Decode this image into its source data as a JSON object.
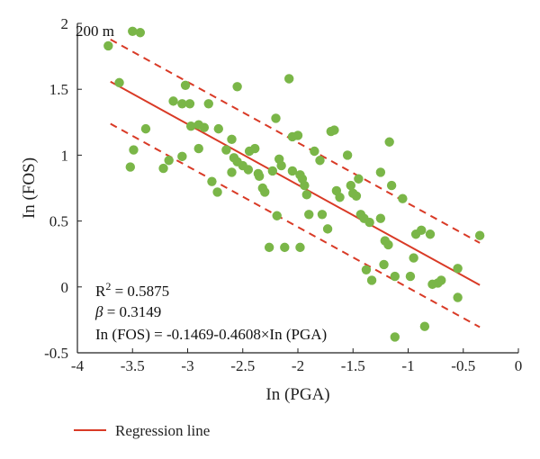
{
  "chart_data": {
    "type": "scatter",
    "title": "",
    "xlabel": "In (PGA)",
    "ylabel": "In (FOS)",
    "xlim": [
      -4,
      0
    ],
    "ylim": [
      -0.5,
      2
    ],
    "x_ticks": [
      "-4",
      "-3.5",
      "-3",
      "-2.5",
      "-2",
      "-1.5",
      "-1",
      "-0.5",
      "0"
    ],
    "y_ticks": [
      "-0.5",
      "0",
      "0.5",
      "1",
      "1.5",
      "2"
    ],
    "grid": false,
    "point_color": "#7ab648",
    "line_color": "#d93a26",
    "series": [
      {
        "name": "",
        "points": [
          [
            -3.72,
            1.83
          ],
          [
            -3.5,
            1.94
          ],
          [
            -3.43,
            1.93
          ],
          [
            -3.62,
            1.55
          ],
          [
            -3.38,
            1.2
          ],
          [
            -3.52,
            0.91
          ],
          [
            -3.49,
            1.04
          ],
          [
            -3.22,
            0.9
          ],
          [
            -3.17,
            0.96
          ],
          [
            -3.13,
            1.41
          ],
          [
            -3.05,
            1.39
          ],
          [
            -3.02,
            1.53
          ],
          [
            -2.98,
            1.39
          ],
          [
            -2.97,
            1.22
          ],
          [
            -2.9,
            1.23
          ],
          [
            -2.85,
            1.21
          ],
          [
            -2.81,
            1.39
          ],
          [
            -3.05,
            0.99
          ],
          [
            -2.78,
            0.8
          ],
          [
            -2.73,
            0.72
          ],
          [
            -2.65,
            1.04
          ],
          [
            -2.55,
            1.52
          ],
          [
            -2.72,
            1.2
          ],
          [
            -2.6,
            1.12
          ],
          [
            -2.58,
            0.98
          ],
          [
            -2.55,
            0.95
          ],
          [
            -2.5,
            0.92
          ],
          [
            -2.45,
            0.89
          ],
          [
            -2.44,
            1.03
          ],
          [
            -2.39,
            1.05
          ],
          [
            -2.36,
            0.86
          ],
          [
            -2.32,
            0.75
          ],
          [
            -2.3,
            0.72
          ],
          [
            -2.26,
            0.3
          ],
          [
            -2.23,
            0.88
          ],
          [
            -2.2,
            1.28
          ],
          [
            -2.19,
            0.54
          ],
          [
            -2.17,
            0.97
          ],
          [
            -2.15,
            0.92
          ],
          [
            -2.12,
            0.3
          ],
          [
            -2.08,
            1.58
          ],
          [
            -2.05,
            0.88
          ],
          [
            -2.05,
            1.14
          ],
          [
            -2.0,
            1.15
          ],
          [
            -1.98,
            0.85
          ],
          [
            -1.96,
            0.82
          ],
          [
            -1.94,
            0.77
          ],
          [
            -1.92,
            0.7
          ],
          [
            -1.9,
            0.55
          ],
          [
            -1.85,
            1.03
          ],
          [
            -1.98,
            0.3
          ],
          [
            -1.78,
            0.55
          ],
          [
            -1.73,
            0.44
          ],
          [
            -1.7,
            1.18
          ],
          [
            -1.67,
            1.19
          ],
          [
            -1.65,
            0.73
          ],
          [
            -1.62,
            0.68
          ],
          [
            -1.55,
            1.0
          ],
          [
            -1.52,
            0.77
          ],
          [
            -1.5,
            0.71
          ],
          [
            -1.47,
            0.69
          ],
          [
            -1.43,
            0.55
          ],
          [
            -1.4,
            0.52
          ],
          [
            -1.38,
            0.13
          ],
          [
            -1.35,
            0.49
          ],
          [
            -1.33,
            0.05
          ],
          [
            -1.25,
            0.87
          ],
          [
            -1.22,
            0.17
          ],
          [
            -1.21,
            0.35
          ],
          [
            -1.18,
            0.32
          ],
          [
            -1.15,
            0.77
          ],
          [
            -1.17,
            1.1
          ],
          [
            -1.12,
            0.08
          ],
          [
            -1.12,
            -0.38
          ],
          [
            -1.05,
            0.67
          ],
          [
            -0.98,
            0.08
          ],
          [
            -0.95,
            0.22
          ],
          [
            -0.93,
            0.4
          ],
          [
            -0.88,
            0.43
          ],
          [
            -0.85,
            -0.3
          ],
          [
            -0.8,
            0.4
          ],
          [
            -0.78,
            0.02
          ],
          [
            -0.73,
            0.03
          ],
          [
            -0.7,
            0.05
          ],
          [
            -0.55,
            0.14
          ],
          [
            -0.55,
            -0.08
          ],
          [
            -0.35,
            0.39
          ],
          [
            -1.8,
            0.96
          ],
          [
            -2.35,
            0.84
          ],
          [
            -2.6,
            0.87
          ],
          [
            -1.45,
            0.82
          ],
          [
            -2.9,
            1.05
          ],
          [
            -1.25,
            0.52
          ]
        ]
      }
    ],
    "regression": {
      "label": "Regression line",
      "intercept": -0.1469,
      "slope": -0.4608,
      "x_range": [
        -3.7,
        -0.35
      ],
      "bound_offset": 0.32
    },
    "annotations": {
      "top_left": "200 m",
      "r2_prefix": "R",
      "r2_sup": "2",
      "r2_value": " = 0.5875",
      "beta_symbol": "β",
      "beta_value": " = 0.3149",
      "equation": "In (FOS) = -0.1469-0.4608×In (PGA)"
    },
    "legend": {
      "position": "bottom-left",
      "entries": [
        "Regression line"
      ]
    }
  }
}
